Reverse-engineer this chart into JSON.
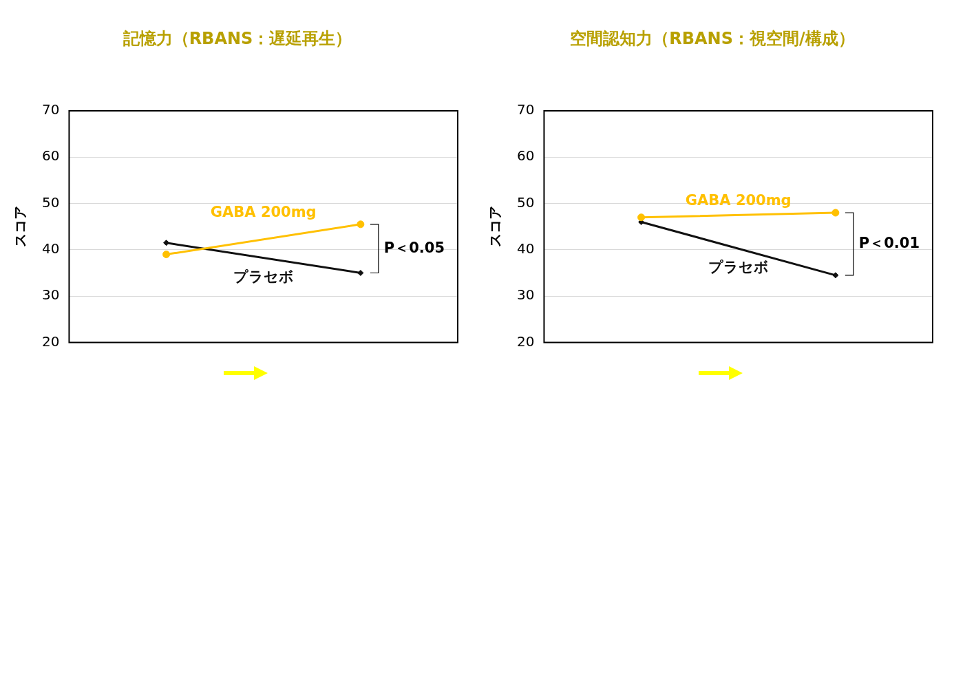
{
  "chart_data": [
    {
      "type": "line",
      "title": "記憶力（RBANS：遅延再生）",
      "ylabel": "スコア",
      "categories": [
        null,
        null
      ],
      "ylim": [
        20,
        70
      ],
      "yticks": [
        20,
        30,
        40,
        50,
        60,
        70
      ],
      "grid": "y",
      "legend": false,
      "annotations": [
        "P＜0.05"
      ],
      "series": [
        {
          "name": "GABA 200mg",
          "color": "#ffc000",
          "marker": "circle",
          "values": [
            39,
            45.5
          ]
        },
        {
          "name": "プラセボ",
          "color": "#111111",
          "marker": "diamond",
          "values": [
            41.5,
            35
          ]
        }
      ]
    },
    {
      "type": "line",
      "title": "空間認知力（RBANS：視空間/構成）",
      "ylabel": "スコア",
      "categories": [
        null,
        null
      ],
      "ylim": [
        20,
        70
      ],
      "yticks": [
        20,
        30,
        40,
        50,
        60,
        70
      ],
      "grid": "y",
      "legend": false,
      "annotations": [
        "P＜0.01"
      ],
      "series": [
        {
          "name": "GABA 200mg",
          "color": "#ffc000",
          "marker": "circle",
          "values": [
            47,
            48
          ]
        },
        {
          "name": "プラセボ",
          "color": "#111111",
          "marker": "diamond",
          "values": [
            46,
            34.5
          ]
        }
      ]
    }
  ]
}
